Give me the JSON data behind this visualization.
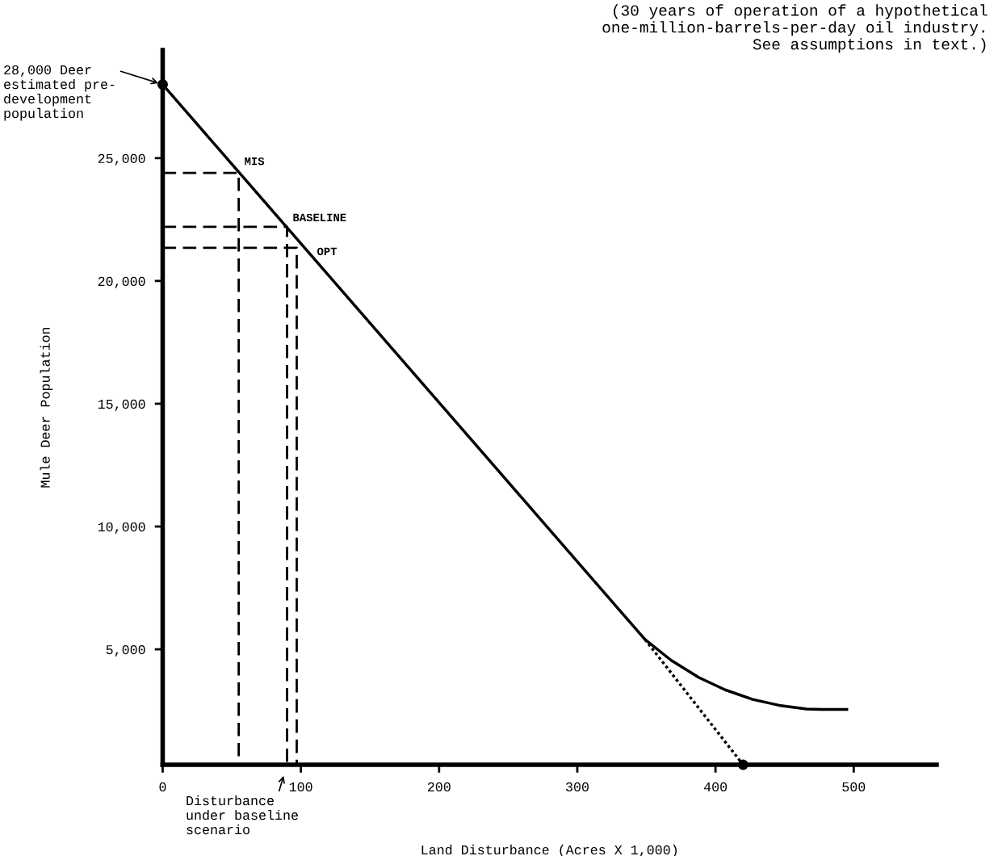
{
  "chart_data": {
    "type": "line",
    "xlabel": "Land Disturbance (Acres X 1,000)",
    "ylabel": "Mule Deer Population",
    "xlim": [
      0,
      560
    ],
    "ylim": [
      300,
      29400
    ],
    "xticks": [
      0,
      100,
      200,
      300,
      400,
      500
    ],
    "yticks": [
      {
        "value": 5000,
        "label": "5,000"
      },
      {
        "value": 10000,
        "label": "10,000"
      },
      {
        "value": 15000,
        "label": "15,000"
      },
      {
        "value": 20000,
        "label": "20,000"
      },
      {
        "value": 25000,
        "label": "25,000"
      }
    ],
    "grid": false,
    "legend": false,
    "series": [
      {
        "color": "#000000",
        "line_style": "solid",
        "x": [
          0,
          349,
          368,
          388,
          407,
          427,
          446,
          466,
          480,
          495
        ],
        "values": [
          28000,
          5400,
          4550,
          3850,
          3350,
          2960,
          2720,
          2570,
          2550,
          2550
        ]
      },
      {
        "color": "#000000",
        "line_style": "dotted",
        "x": [
          349,
          420
        ],
        "values": [
          5400,
          300
        ]
      },
      {
        "color": "#000000",
        "line_style": "dashed",
        "x": [
          0,
          55,
          55
        ],
        "values": [
          24400,
          24400,
          300
        ]
      },
      {
        "color": "#000000",
        "line_style": "dashed",
        "x": [
          0,
          90,
          90
        ],
        "values": [
          22200,
          22200,
          300
        ]
      },
      {
        "color": "#000000",
        "line_style": "dashed",
        "x": [
          0,
          97,
          97
        ],
        "values": [
          21350,
          21350,
          300
        ]
      },
      {
        "type": "scatter",
        "color": "#000000",
        "marker": "circle",
        "x": [
          0,
          420
        ],
        "values": [
          28000,
          300
        ]
      }
    ],
    "annotations": [
      "(30 years of operation of a hypothetical\none-million-barrels-per-day oil industry.\nSee assumptions in text.)",
      {
        "text": "28,000 Deer\nestimated pre-\ndevelopment\npopulation",
        "x": 0,
        "y": 28000
      },
      {
        "text": "MIS",
        "x": 55,
        "y": 24400
      },
      {
        "text": "BASELINE",
        "x": 90,
        "y": 22200
      },
      {
        "text": "OPT",
        "x": 97,
        "y": 21350
      },
      "Disturbance\nunder baseline\nscenario"
    ]
  }
}
